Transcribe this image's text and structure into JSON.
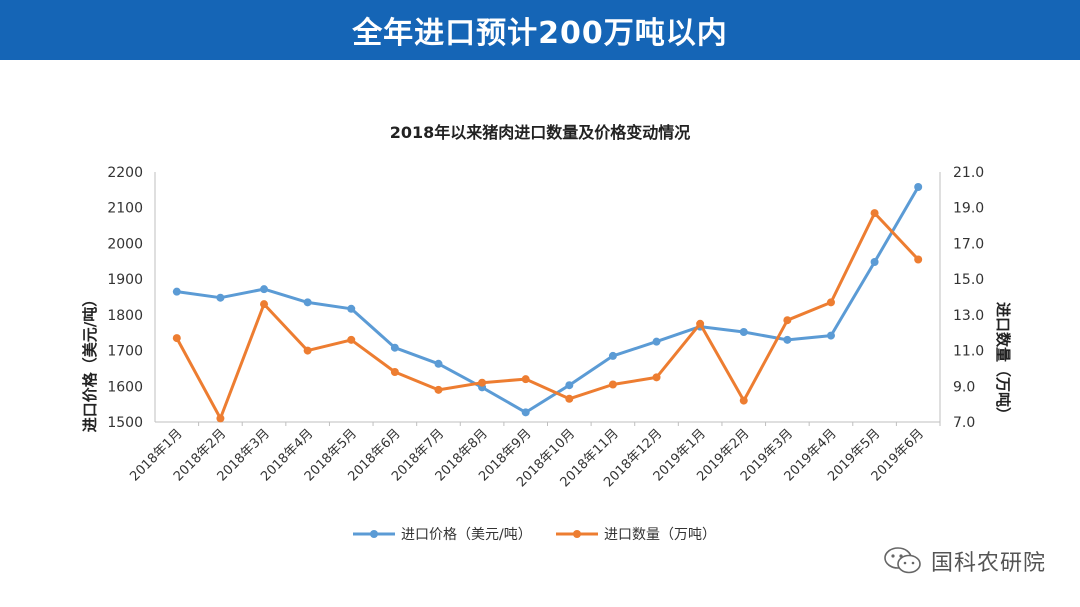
{
  "header": {
    "title": "全年进口预计200万吨以内"
  },
  "watermark": {
    "text": "国科农研院"
  },
  "chart_data": {
    "type": "line",
    "title": "2018年以来猪肉进口数量及价格变动情况",
    "categories": [
      "2018年1月",
      "2018年2月",
      "2018年3月",
      "2018年4月",
      "2018年5月",
      "2018年6月",
      "2018年7月",
      "2018年8月",
      "2018年9月",
      "2018年10月",
      "2018年11月",
      "2018年12月",
      "2019年1月",
      "2019年2月",
      "2019年3月",
      "2019年4月",
      "2019年5月",
      "2019年6月"
    ],
    "series": [
      {
        "name": "进口价格（美元/吨）",
        "axis": "left",
        "color": "#5b9bd5",
        "values": [
          1865,
          1848,
          1872,
          1835,
          1817,
          1708,
          1663,
          1597,
          1527,
          1603,
          1685,
          1725,
          1767,
          1752,
          1730,
          1742,
          1948,
          2158
        ]
      },
      {
        "name": "进口数量（万吨）",
        "axis": "right",
        "color": "#ed7d31",
        "values": [
          11.7,
          7.2,
          13.6,
          11.0,
          11.6,
          9.8,
          8.8,
          9.2,
          9.4,
          8.3,
          9.1,
          9.5,
          12.5,
          8.2,
          12.7,
          13.7,
          18.7,
          16.1
        ]
      }
    ],
    "ylabel": "进口价格（美元/吨）",
    "y2label": "进口数量（万吨）",
    "ylim": [
      1500,
      2200
    ],
    "y2lim": [
      7.0,
      21.0
    ],
    "yticks": [
      "1500",
      "1600",
      "1700",
      "1800",
      "1900",
      "2000",
      "2100",
      "2200"
    ],
    "y2ticks": [
      "7.0",
      "9.0",
      "11.0",
      "13.0",
      "15.0",
      "17.0",
      "19.0",
      "21.0"
    ],
    "legend_position": "bottom"
  },
  "colors": {
    "banner": "#1565b6",
    "price": "#5b9bd5",
    "volume": "#ed7d31"
  }
}
